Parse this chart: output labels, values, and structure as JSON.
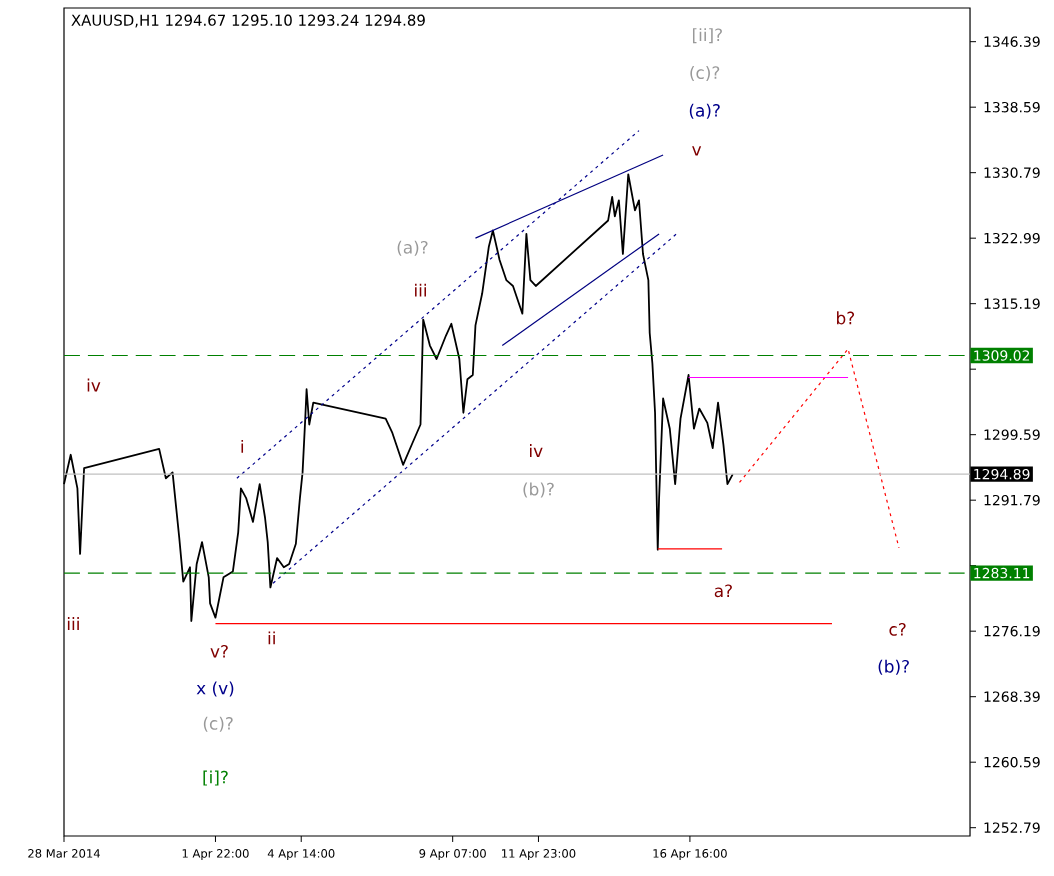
{
  "chart_data": {
    "type": "line",
    "title": "XAUUSD,H1 1294.67 1295.10 1293.24 1294.89",
    "xlim": [
      "2014-03-28T05:00",
      "2014-04-25T09:00"
    ],
    "ylim": [
      1251.8,
      1350.4
    ],
    "xticks": [
      {
        "value": "2014-03-28T05:00",
        "label": "28 Mar 2014"
      },
      {
        "value": "2014-04-01T22:00",
        "label": "1 Apr 22:00"
      },
      {
        "value": "2014-04-04T14:00",
        "label": "4 Apr 14:00"
      },
      {
        "value": "2014-04-09T07:00",
        "label": "9 Apr 07:00"
      },
      {
        "value": "2014-04-11T23:00",
        "label": "11 Apr 23:00"
      },
      {
        "value": "2014-04-16T16:00",
        "label": "16 Apr 16:00"
      }
    ],
    "yticks": [
      1346.39,
      1338.59,
      1330.79,
      1322.99,
      1315.19,
      {
        "value": 1307.39,
        "label": null
      },
      1299.59,
      1291.79,
      {
        "value": 1283.99,
        "label": null
      },
      1276.19,
      1268.39,
      1260.59,
      1252.79
    ],
    "series": [
      {
        "color": "#000000",
        "line_style": "solid",
        "x": [
          "2014-03-28T05:00",
          "2014-03-28T10:00",
          "2014-03-28T15:00",
          "2014-03-28T17:00",
          "2014-03-28T20:00",
          "2014-03-31T04:00",
          "2014-03-31T09:00",
          "2014-03-31T14:00",
          "2014-03-31T19:00",
          "2014-03-31T22:00",
          "2014-04-01T03:00",
          "2014-04-01T04:00",
          "2014-04-01T08:00",
          "2014-04-01T12:00",
          "2014-04-01T17:00",
          "2014-04-01T18:00",
          "2014-04-01T22:00",
          "2014-04-02T01:00",
          "2014-04-02T04:00",
          "2014-04-02T11:00",
          "2014-04-02T15:00",
          "2014-04-02T17:00",
          "2014-04-02T21:00",
          "2014-04-03T02:00",
          "2014-04-03T07:00",
          "2014-04-03T11:00",
          "2014-04-03T13:00",
          "2014-04-03T15:00",
          "2014-04-03T20:00",
          "2014-04-04T01:00",
          "2014-04-04T05:00",
          "2014-04-04T10:00",
          "2014-04-04T13:00",
          "2014-04-04T15:00",
          "2014-04-04T17:00",
          "2014-04-04T18:00",
          "2014-04-04T20:00",
          "2014-04-04T23:00",
          "2014-04-07T05:00",
          "2014-04-07T10:00",
          "2014-04-07T18:00",
          "2014-04-08T01:00",
          "2014-04-08T07:00",
          "2014-04-08T09:00",
          "2014-04-08T14:00",
          "2014-04-08T19:00",
          "2014-04-09T02:00",
          "2014-04-09T06:00",
          "2014-04-09T12:00",
          "2014-04-09T15:00",
          "2014-04-09T18:00",
          "2014-04-09T22:00",
          "2014-04-10T00:00",
          "2014-04-10T05:00",
          "2014-04-10T10:00",
          "2014-04-10T13:00",
          "2014-04-10T18:00",
          "2014-04-10T23:00",
          "2014-04-11T04:00",
          "2014-04-11T11:00",
          "2014-04-11T14:00",
          "2014-04-11T17:00",
          "2014-04-11T21:00",
          "2014-04-14T03:00",
          "2014-04-14T06:00",
          "2014-04-14T08:00",
          "2014-04-14T11:00",
          "2014-04-14T14:00",
          "2014-04-14T18:00",
          "2014-04-14T23:00",
          "2014-04-15T02:00",
          "2014-04-15T05:00",
          "2014-04-15T09:00",
          "2014-04-15T10:00",
          "2014-04-15T12:00",
          "2014-04-15T14:00",
          "2014-04-15T15:00",
          "2014-04-15T16:00",
          "2014-04-15T17:00",
          "2014-04-15T20:00",
          "2014-04-16T01:00",
          "2014-04-16T05:00",
          "2014-04-16T09:00",
          "2014-04-16T15:00",
          "2014-04-16T19:00",
          "2014-04-16T23:00",
          "2014-04-17T05:00",
          "2014-04-17T09:00",
          "2014-04-17T13:00",
          "2014-04-17T17:00",
          "2014-04-17T20:00",
          "2014-04-18T00:00"
        ],
        "values": [
          1293.7,
          1297.2,
          1293.2,
          1285.4,
          1295.6,
          1297.9,
          1294.4,
          1295.1,
          1287.3,
          1282.1,
          1283.8,
          1277.4,
          1284.2,
          1286.8,
          1282.6,
          1279.5,
          1277.8,
          1280.2,
          1282.6,
          1283.3,
          1288.0,
          1293.2,
          1292.0,
          1289.2,
          1293.7,
          1289.7,
          1286.8,
          1281.4,
          1284.9,
          1283.8,
          1284.2,
          1286.6,
          1292.0,
          1295.1,
          1301.5,
          1305.0,
          1300.8,
          1303.4,
          1301.5,
          1299.8,
          1296.0,
          1298.6,
          1300.8,
          1313.3,
          1310.2,
          1308.6,
          1311.4,
          1312.8,
          1308.6,
          1302.2,
          1306.2,
          1306.7,
          1312.6,
          1316.4,
          1322.0,
          1323.9,
          1320.4,
          1318.0,
          1317.3,
          1314.0,
          1323.5,
          1318.0,
          1317.3,
          1325.1,
          1327.9,
          1325.6,
          1327.5,
          1321.1,
          1330.6,
          1326.3,
          1327.5,
          1321.1,
          1318.0,
          1311.7,
          1308.1,
          1302.2,
          1293.7,
          1285.9,
          1292.0,
          1303.9,
          1300.3,
          1293.7,
          1301.5,
          1306.7,
          1300.3,
          1302.7,
          1301.0,
          1298.0,
          1303.4,
          1298.4,
          1293.7,
          1294.9
        ]
      },
      {
        "color": "#ff0000",
        "line_style": "dotted",
        "x": [
          "2014-04-18T05:00",
          "2014-04-21T14:00",
          "2014-04-23T04:00"
        ],
        "values": [
          1293.9,
          1309.8,
          1286.1
        ]
      },
      {
        "color": "#ff00ff",
        "line_style": "solid",
        "x": [
          "2014-04-16T15:00",
          "2014-04-21T14:00"
        ],
        "values": [
          1306.4,
          1306.4
        ]
      },
      {
        "color": "#ff0000",
        "line_style": "solid",
        "x": [
          "2014-04-15T16:00",
          "2014-04-17T16:00"
        ],
        "values": [
          1286.0,
          1286.0
        ]
      },
      {
        "color": "#ff0000",
        "line_style": "solid",
        "x": [
          "2014-04-01T22:00",
          "2014-04-21T02:00"
        ],
        "values": [
          1277.1,
          1277.1
        ]
      },
      {
        "color": "#00008b",
        "line_style": "dotted",
        "x": [
          "2014-04-02T14:00",
          "2014-04-15T02:00"
        ],
        "values": [
          1294.4,
          1335.8
        ]
      },
      {
        "color": "#00008b",
        "line_style": "dotted",
        "x": [
          "2014-04-03T17:00",
          "2014-04-16T06:00"
        ],
        "values": [
          1281.9,
          1323.5
        ]
      },
      {
        "color": "#000080",
        "line_style": "solid",
        "x": [
          "2014-04-10T00:00",
          "2014-04-15T20:00"
        ],
        "values": [
          1323.0,
          1332.9
        ]
      },
      {
        "color": "#000080",
        "line_style": "solid",
        "x": [
          "2014-04-10T20:00",
          "2014-04-15T17:00"
        ],
        "values": [
          1310.2,
          1323.5
        ]
      }
    ],
    "ref_lines": [
      {
        "axis": "y",
        "value": 1309.02,
        "label": "1309.02",
        "color": "#008000",
        "line_style": "dashed"
      },
      {
        "axis": "y",
        "value": 1283.11,
        "label": "1283.11",
        "color": "#008000",
        "line_style": "dashed"
      },
      {
        "axis": "y",
        "value": 1294.89,
        "label": "1294.89",
        "color": "#c0c0c0",
        "line_style": "solid"
      }
    ],
    "annotations": [
      "iv",
      "iii",
      "i",
      "ii",
      "v?",
      "x (v)",
      "(c)?",
      "[i]?",
      "(a)?",
      "iii",
      "iv",
      "(b)?",
      "[ii]?",
      "(c)?",
      "(a)?",
      "v",
      "b?",
      "a?",
      "c?",
      "(b)?"
    ]
  }
}
